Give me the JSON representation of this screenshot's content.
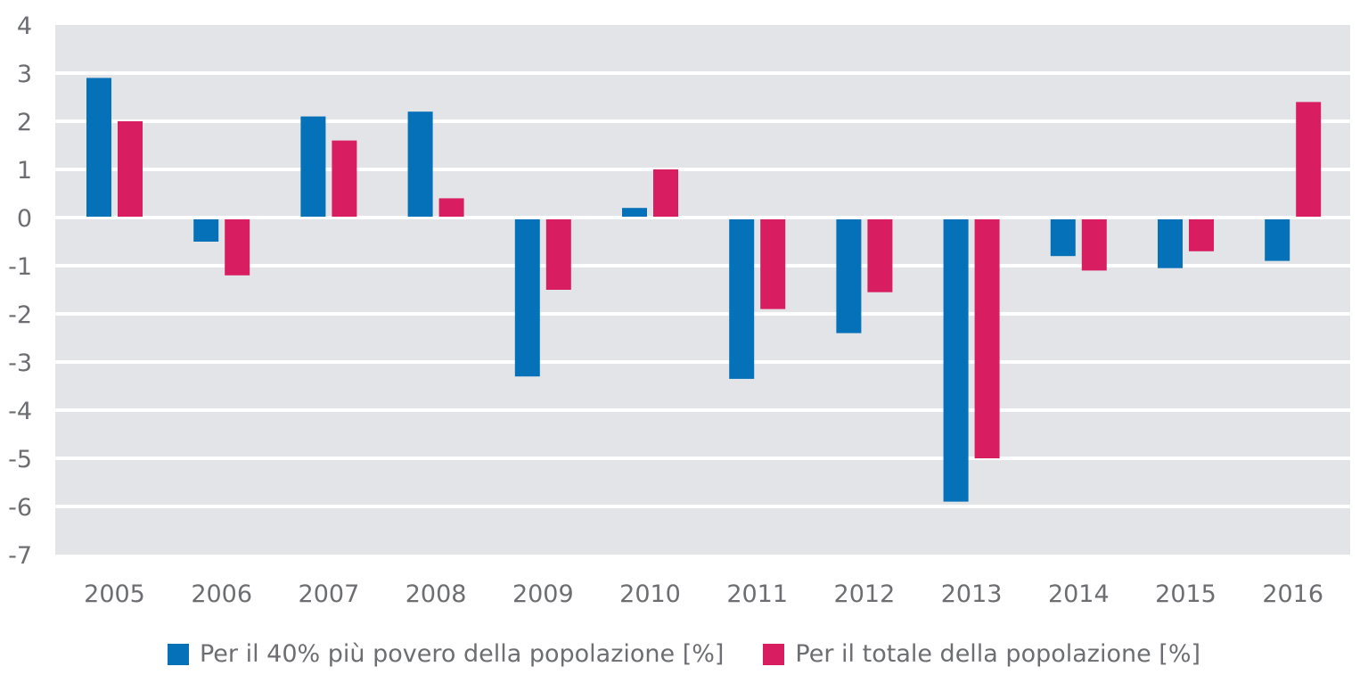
{
  "chart_data": {
    "type": "bar",
    "title": "",
    "xlabel": "",
    "ylabel": "",
    "categories": [
      "2005",
      "2006",
      "2007",
      "2008",
      "2009",
      "2010",
      "2011",
      "2012",
      "2013",
      "2014",
      "2015",
      "2016"
    ],
    "series": [
      {
        "name": "Per il 40% più povero della popolazione [%]",
        "color": "#0571b8",
        "values": [
          2.9,
          -0.5,
          2.1,
          2.2,
          -3.3,
          0.2,
          -3.35,
          -2.4,
          -5.9,
          -0.8,
          -1.05,
          -0.9
        ]
      },
      {
        "name": "Per il totale della popolazione [%]",
        "color": "#d81e60",
        "values": [
          2.0,
          -1.2,
          1.6,
          0.4,
          -1.5,
          1.0,
          -1.9,
          -1.55,
          -5.0,
          -1.1,
          -0.7,
          2.4
        ]
      }
    ],
    "ylim": [
      -7,
      4
    ],
    "yticks": [
      "4",
      "3",
      "2",
      "1",
      "0",
      "-1",
      "-2",
      "-3",
      "-4",
      "-5",
      "-6",
      "-7"
    ],
    "grid": true,
    "legend_position": "bottom",
    "plot_background": "#e3e4e8"
  }
}
